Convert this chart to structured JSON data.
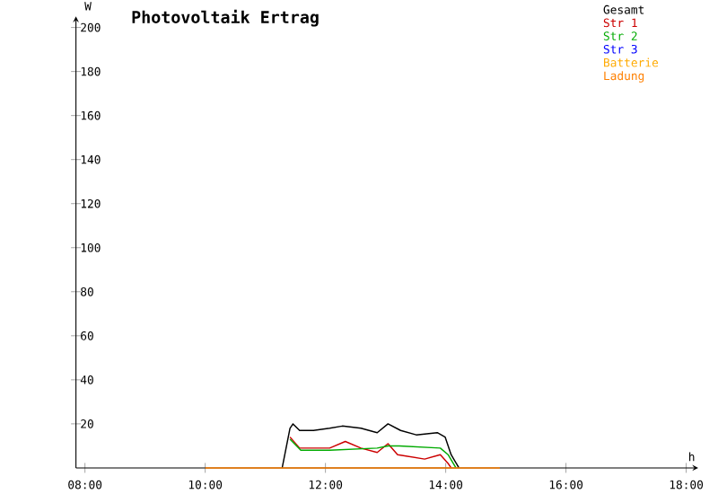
{
  "chart_data": {
    "type": "line",
    "title": "Photovoltaik Ertrag",
    "xlabel": "h",
    "ylabel": "W",
    "xlim": [
      7.85,
      18.2
    ],
    "ylim": [
      0,
      205
    ],
    "xticks": [
      {
        "value": 8,
        "label": "08:00"
      },
      {
        "value": 10,
        "label": "10:00"
      },
      {
        "value": 12,
        "label": "12:00"
      },
      {
        "value": 14,
        "label": "14:00"
      },
      {
        "value": 16,
        "label": "16:00"
      },
      {
        "value": 18,
        "label": "18:00"
      }
    ],
    "yticks": [
      20,
      40,
      60,
      80,
      100,
      120,
      140,
      160,
      180,
      200
    ],
    "grid": false,
    "legend": "top right",
    "marker": "none",
    "line_style": "solid",
    "series": [
      {
        "name": "Gesamt",
        "color": "#000000",
        "x": [
          11.28,
          11.41,
          11.46,
          11.57,
          11.8,
          12.07,
          12.28,
          12.59,
          12.86,
          13.04,
          13.25,
          13.51,
          13.86,
          13.99,
          14.09,
          14.22
        ],
        "values": [
          0,
          18,
          20,
          17,
          17,
          18,
          19,
          18,
          16,
          20,
          17,
          15,
          16,
          14,
          6,
          0
        ]
      },
      {
        "name": "Str 1",
        "color": "#cc0000",
        "x": [
          11.41,
          11.57,
          11.8,
          12.07,
          12.33,
          12.59,
          12.86,
          13.04,
          13.2,
          13.65,
          13.91,
          14.04,
          14.09
        ],
        "values": [
          14,
          9,
          9,
          9,
          12,
          9,
          7,
          11,
          6,
          4,
          6,
          2,
          0
        ]
      },
      {
        "name": "Str 2",
        "color": "#00aa00",
        "x": [
          11.41,
          11.59,
          12.07,
          12.86,
          13.04,
          13.23,
          13.91,
          14.04,
          14.17
        ],
        "values": [
          13,
          8,
          8,
          9,
          10,
          10,
          9,
          6,
          0
        ]
      },
      {
        "name": "Str 3",
        "color": "#0000ff"
      },
      {
        "name": "Batterie",
        "color": "#ffaa00"
      },
      {
        "name": "Ladung",
        "color": "#ff8000",
        "x": [
          10.0,
          14.9
        ],
        "values": [
          0,
          0
        ]
      }
    ]
  }
}
